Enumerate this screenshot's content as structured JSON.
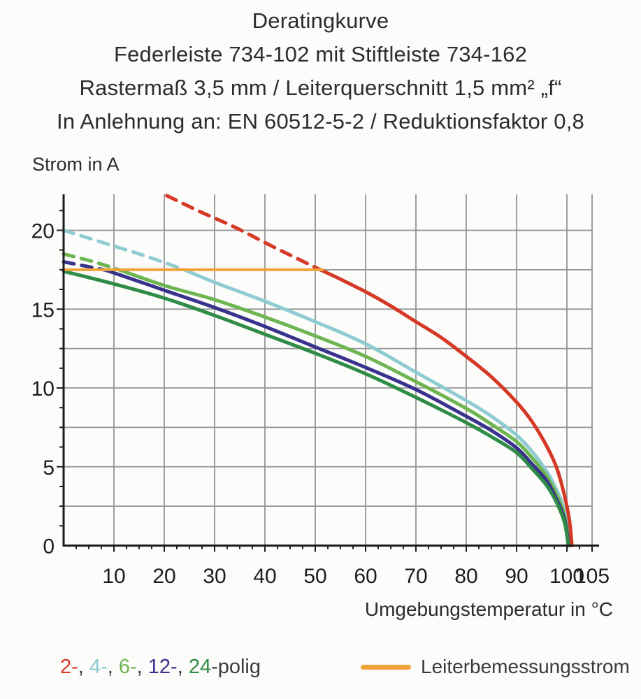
{
  "titles": [
    "Deratingkurve",
    "Federleiste 734-102 mit Stiftleiste 734-162",
    "Rastermaß 3,5 mm / Leiterquerschnitt 1,5 mm² „f“",
    "In Anlehnung an: EN 60512-5-2 / Reduktionsfaktor 0,8"
  ],
  "chart_data": {
    "type": "line",
    "title": "Deratingkurve",
    "ylabel": "Strom in A",
    "xlabel": "Umgebungstemperatur in °C",
    "xlim": [
      0,
      105
    ],
    "ylim": [
      0,
      22.3
    ],
    "grid": "on",
    "x_ticks": [
      10,
      20,
      30,
      40,
      50,
      60,
      70,
      80,
      90,
      100,
      105
    ],
    "y_ticks": [
      0,
      5,
      10,
      15,
      20
    ],
    "x_grid": [
      10,
      20,
      30,
      40,
      50,
      60,
      70,
      80,
      90,
      100,
      105
    ],
    "y_grid": [
      2.5,
      5,
      7.5,
      10,
      12.5,
      15,
      17.5,
      20
    ],
    "x_minor_step": 2.5,
    "y_minor_step": 1.25,
    "axis_color": "#1c1c1c",
    "grid_color": "#939393",
    "series": [
      {
        "name": "4-polig",
        "color": "#8fccd2",
        "width": 5,
        "dashed": [
          [
            0,
            20.0
          ],
          [
            8,
            19.2
          ],
          [
            16,
            18.4
          ],
          [
            24,
            17.5
          ]
        ],
        "solid": [
          [
            24,
            17.5
          ],
          [
            30,
            16.7
          ],
          [
            40,
            15.5
          ],
          [
            50,
            14.2
          ],
          [
            60,
            12.8
          ],
          [
            70,
            11.0
          ],
          [
            80,
            9.2
          ],
          [
            85,
            8.2
          ],
          [
            90,
            7.0
          ],
          [
            93,
            6.0
          ],
          [
            96,
            4.7
          ],
          [
            98,
            3.5
          ],
          [
            99.5,
            2.2
          ],
          [
            100.6,
            0
          ]
        ]
      },
      {
        "name": "6-polig",
        "color": "#6db551",
        "width": 5,
        "dashed": [
          [
            0,
            18.5
          ],
          [
            6,
            18.0
          ],
          [
            11,
            17.5
          ]
        ],
        "solid": [
          [
            11,
            17.5
          ],
          [
            20,
            16.5
          ],
          [
            30,
            15.6
          ],
          [
            40,
            14.5
          ],
          [
            50,
            13.3
          ],
          [
            60,
            12.0
          ],
          [
            70,
            10.4
          ],
          [
            80,
            8.7
          ],
          [
            85,
            7.7
          ],
          [
            90,
            6.6
          ],
          [
            93,
            5.6
          ],
          [
            96,
            4.4
          ],
          [
            98,
            3.2
          ],
          [
            99.5,
            1.9
          ],
          [
            100.5,
            0
          ]
        ]
      },
      {
        "name": "12-polig",
        "color": "#39328c",
        "width": 5,
        "dashed": [
          [
            0,
            18.0
          ],
          [
            4,
            17.75
          ],
          [
            8,
            17.5
          ]
        ],
        "solid": [
          [
            8,
            17.5
          ],
          [
            10,
            17.3
          ],
          [
            20,
            16.2
          ],
          [
            30,
            15.1
          ],
          [
            40,
            13.9
          ],
          [
            50,
            12.6
          ],
          [
            60,
            11.3
          ],
          [
            70,
            9.9
          ],
          [
            80,
            8.2
          ],
          [
            85,
            7.3
          ],
          [
            90,
            6.2
          ],
          [
            93,
            5.2
          ],
          [
            96,
            4.1
          ],
          [
            98,
            2.9
          ],
          [
            99.5,
            1.7
          ],
          [
            100.4,
            0
          ]
        ]
      },
      {
        "name": "24-polig",
        "color": "#2f8c46",
        "width": 5,
        "solid": [
          [
            0,
            17.4
          ],
          [
            10,
            16.6
          ],
          [
            20,
            15.7
          ],
          [
            30,
            14.6
          ],
          [
            40,
            13.4
          ],
          [
            50,
            12.2
          ],
          [
            60,
            10.9
          ],
          [
            70,
            9.4
          ],
          [
            80,
            7.8
          ],
          [
            85,
            6.9
          ],
          [
            90,
            5.9
          ],
          [
            93,
            4.9
          ],
          [
            96,
            3.8
          ],
          [
            98,
            2.7
          ],
          [
            99.5,
            1.5
          ],
          [
            100.3,
            0
          ]
        ]
      },
      {
        "name": "2-polig",
        "color": "#d63826",
        "width": 5,
        "dashed": [
          [
            20.5,
            22.2
          ],
          [
            27,
            21.2
          ],
          [
            34,
            20.2
          ],
          [
            42,
            18.9
          ],
          [
            51,
            17.5
          ]
        ],
        "solid": [
          [
            51,
            17.5
          ],
          [
            55,
            16.9
          ],
          [
            60,
            16.1
          ],
          [
            65,
            15.2
          ],
          [
            70,
            14.2
          ],
          [
            75,
            13.2
          ],
          [
            80,
            12.0
          ],
          [
            85,
            10.7
          ],
          [
            90,
            9.1
          ],
          [
            93,
            7.9
          ],
          [
            96,
            6.3
          ],
          [
            98,
            4.9
          ],
          [
            99.5,
            3.2
          ],
          [
            100.5,
            1.6
          ],
          [
            101,
            0
          ]
        ]
      },
      {
        "name": "Leiterbemessungsstrom",
        "color": "#f0a339",
        "width": 4,
        "solid": [
          [
            0,
            17.5
          ],
          [
            51.5,
            17.5
          ]
        ]
      }
    ]
  },
  "legend": {
    "sep": ", ",
    "suffix": "-polig",
    "pole_items": [
      {
        "label": "2-",
        "color": "#d63826"
      },
      {
        "label": "4-",
        "color": "#8fccd2"
      },
      {
        "label": "6-",
        "color": "#6db551"
      },
      {
        "label": "12-",
        "color": "#39328c"
      },
      {
        "label": "24",
        "color": "#2f8c46"
      }
    ],
    "rated": {
      "label": "Leiterbemessungsstrom",
      "color": "#f0a339"
    }
  }
}
